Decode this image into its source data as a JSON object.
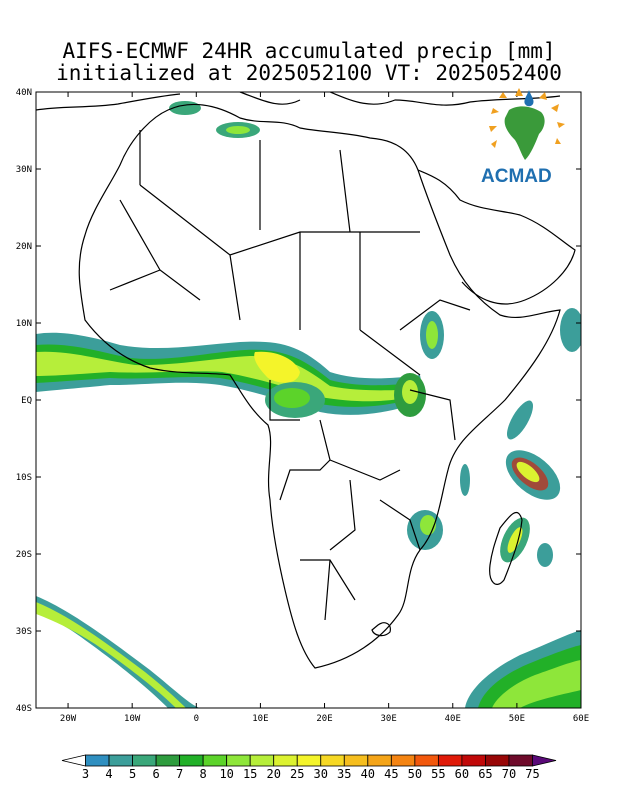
{
  "header": {
    "title_line1": "AIFS-ECMWF 24HR accumulated precip [mm]",
    "title_line2": "initialized at 2025052100 VT: 2025052400"
  },
  "logo": {
    "text": "ACMAD",
    "icon": "africa-map-logo"
  },
  "axes": {
    "lat_labels": [
      "40N",
      "30N",
      "20N",
      "10N",
      "EQ",
      "10S",
      "20S",
      "30S",
      "40S"
    ],
    "lon_labels": [
      "20W",
      "10W",
      "0",
      "10E",
      "20E",
      "30E",
      "40E",
      "50E",
      "60E"
    ],
    "lat_range": [
      -40,
      40
    ],
    "lon_range": [
      -25,
      60
    ]
  },
  "colorbar": {
    "levels": [
      "3",
      "4",
      "5",
      "6",
      "7",
      "8",
      "10",
      "15",
      "20",
      "25",
      "30",
      "35",
      "40",
      "45",
      "50",
      "55",
      "60",
      "65",
      "70",
      "75"
    ],
    "colors": [
      "#ffffff",
      "#2f8fc0",
      "#3c9e9a",
      "#3aa77a",
      "#2e9c3e",
      "#22b028",
      "#5cd32a",
      "#8ee63a",
      "#b6ee3a",
      "#dcf230",
      "#f4f42a",
      "#f6d824",
      "#f6be1e",
      "#f4a418",
      "#f48412",
      "#f2580c",
      "#e01a08",
      "#c00808",
      "#980606",
      "#6e0a2a",
      "#5a0a78"
    ]
  }
}
